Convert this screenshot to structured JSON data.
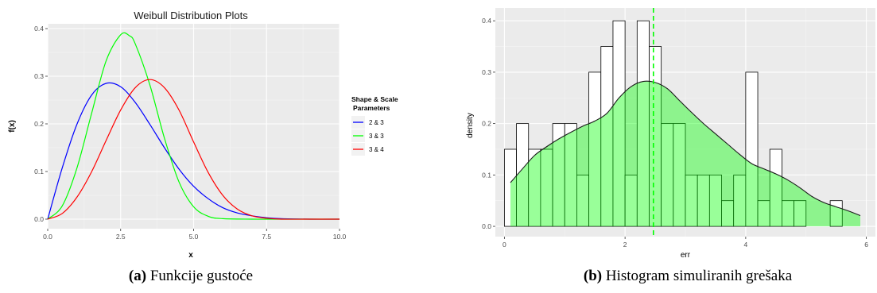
{
  "captions": {
    "a": {
      "label": "(a)",
      "text": "Funkcije gustoće"
    },
    "b": {
      "label": "(b)",
      "text": "Histogram simuliranih grešaka"
    }
  },
  "chart_data": [
    {
      "type": "line",
      "title": "Weibull Distribution Plots",
      "xlabel": "x",
      "ylabel": "f(x)",
      "xlim": [
        0,
        10
      ],
      "ylim": [
        -0.02,
        0.41
      ],
      "x_ticks": [
        0,
        2.5,
        5,
        7.5,
        10
      ],
      "x_tick_labels": [
        "0.0",
        "2.5",
        "5.0",
        "7.5",
        "10.0"
      ],
      "y_ticks": [
        0,
        0.1,
        0.2,
        0.3,
        0.4
      ],
      "y_tick_labels": [
        "0.0",
        "0.1",
        "0.2",
        "0.3",
        "0.4"
      ],
      "grid": true,
      "legend": {
        "title": "Shape & Scale\nParameters",
        "position": "right"
      },
      "series": [
        {
          "name": "2 & 3",
          "color": "#0000ff",
          "x": [
            0,
            0.5,
            1,
            1.5,
            2,
            2.5,
            3,
            3.5,
            4,
            4.5,
            5,
            5.5,
            6,
            6.5,
            7,
            7.5,
            8,
            9,
            10
          ],
          "y": [
            0,
            0.108,
            0.199,
            0.26,
            0.285,
            0.278,
            0.245,
            0.199,
            0.15,
            0.105,
            0.069,
            0.043,
            0.024,
            0.013,
            0.007,
            0.003,
            0.001,
            0.0,
            0.0
          ]
        },
        {
          "name": "3 & 3",
          "color": "#00ff00",
          "x": [
            0,
            0.5,
            1,
            1.5,
            2,
            2.5,
            2.8,
            3,
            3.5,
            4,
            4.5,
            5,
            5.5,
            6,
            7,
            8,
            10
          ],
          "y": [
            0,
            0.028,
            0.107,
            0.221,
            0.332,
            0.387,
            0.385,
            0.368,
            0.282,
            0.17,
            0.078,
            0.026,
            0.006,
            0.001,
            0.0,
            0.0,
            0.0
          ]
        },
        {
          "name": "3 & 4",
          "color": "#ff0000",
          "x": [
            0,
            0.5,
            1,
            1.5,
            2,
            2.5,
            3,
            3.5,
            4,
            4.5,
            5,
            5.5,
            6,
            6.5,
            7,
            7.5,
            8,
            9,
            10
          ],
          "y": [
            0,
            0.012,
            0.046,
            0.099,
            0.165,
            0.229,
            0.276,
            0.293,
            0.276,
            0.229,
            0.162,
            0.098,
            0.05,
            0.021,
            0.007,
            0.002,
            0.0,
            0.0,
            0.0
          ]
        }
      ]
    },
    {
      "type": "bar",
      "subtype": "histogram-with-density",
      "xlabel": "err",
      "ylabel": "density",
      "xlim": [
        -0.15,
        6.15
      ],
      "ylim": [
        -0.02,
        0.425
      ],
      "x_ticks": [
        0,
        2,
        4,
        6
      ],
      "x_tick_labels": [
        "0",
        "2",
        "4",
        "6"
      ],
      "y_ticks": [
        0,
        0.1,
        0.2,
        0.3,
        0.4
      ],
      "y_tick_labels": [
        "0.0",
        "0.1",
        "0.2",
        "0.3",
        "0.4"
      ],
      "grid": true,
      "bin_start": 0.1,
      "bin_width": 0.2,
      "histogram_values": [
        0.15,
        0.2,
        0.15,
        0.15,
        0.2,
        0.2,
        0.1,
        0.3,
        0.35,
        0.4,
        0.1,
        0.4,
        0.35,
        0.2,
        0.2,
        0.1,
        0.1,
        0.1,
        0.05,
        0.1,
        0.3,
        0.05,
        0.15,
        0.05,
        0.05,
        0.0,
        0.0,
        0.05
      ],
      "density_curve": {
        "x": [
          0.1,
          0.3,
          0.5,
          0.7,
          0.9,
          1.1,
          1.3,
          1.5,
          1.7,
          1.9,
          2.1,
          2.3,
          2.5,
          2.7,
          2.9,
          3.1,
          3.3,
          3.5,
          3.7,
          3.9,
          4.1,
          4.3,
          4.5,
          4.7,
          4.9,
          5.1,
          5.3,
          5.5,
          5.7,
          5.9
        ],
        "y": [
          0.085,
          0.112,
          0.138,
          0.155,
          0.17,
          0.183,
          0.195,
          0.205,
          0.22,
          0.25,
          0.272,
          0.282,
          0.28,
          0.268,
          0.245,
          0.222,
          0.2,
          0.18,
          0.16,
          0.14,
          0.122,
          0.112,
          0.102,
          0.09,
          0.075,
          0.058,
          0.046,
          0.038,
          0.03,
          0.021
        ],
        "fill_color": "#00ff00",
        "fill_alpha": 0.4
      },
      "mean_line": {
        "x": 2.47,
        "color": "#00ff00",
        "style": "dashed"
      }
    }
  ]
}
